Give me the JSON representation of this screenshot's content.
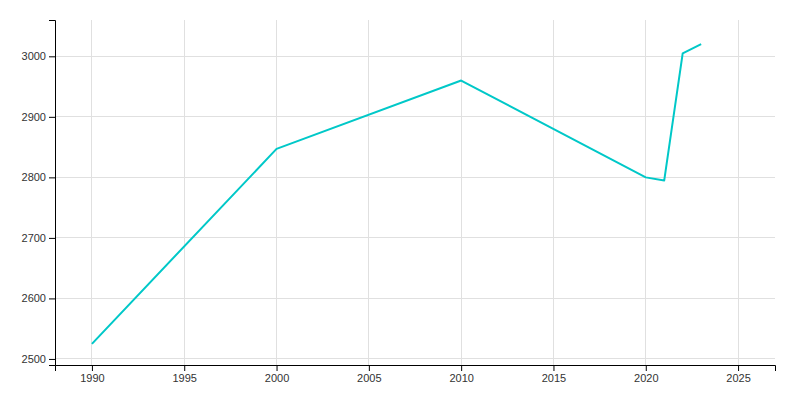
{
  "chart_data": {
    "type": "line",
    "x": [
      1990,
      2000,
      2010,
      2020,
      2021,
      2022,
      2023
    ],
    "values": [
      2525,
      2847,
      2960,
      2800,
      2795,
      3005,
      3020
    ],
    "color": "#00C8C8",
    "xlim": [
      1988,
      2027
    ],
    "ylim": [
      2490,
      3060
    ],
    "xticks": [
      1990,
      1995,
      2000,
      2005,
      2010,
      2015,
      2020,
      2025
    ],
    "yticks": [
      2500,
      2600,
      2700,
      2800,
      2900,
      3000
    ],
    "grid": true
  }
}
